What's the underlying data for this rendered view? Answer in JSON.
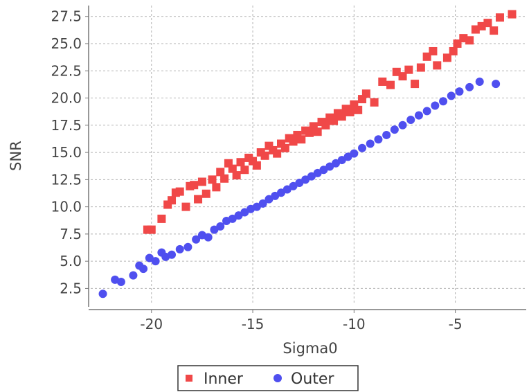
{
  "chart_data": {
    "type": "scatter",
    "title": "",
    "xlabel": "Sigma0",
    "ylabel": "SNR",
    "xlim": [
      -23,
      -1.5
    ],
    "ylim": [
      1,
      28.5
    ],
    "xticks": [
      -20,
      -15,
      -10,
      -5
    ],
    "xtick_labels": [
      "-20",
      "-15",
      "-10",
      "-5"
    ],
    "yticks": [
      2.5,
      5.0,
      7.5,
      10.0,
      12.5,
      15.0,
      17.5,
      20.0,
      22.5,
      25.0,
      27.5
    ],
    "ytick_labels": [
      "2.5",
      "5.0",
      "7.5",
      "10.0",
      "12.5",
      "15.0",
      "17.5",
      "20.0",
      "22.5",
      "25.0",
      "27.5"
    ],
    "grid": true,
    "legend_position": "bottom-center",
    "series": [
      {
        "name": "Inner",
        "marker": "square",
        "color": "#f04848",
        "points": [
          [
            -20.2,
            7.9
          ],
          [
            -20.0,
            7.9
          ],
          [
            -19.5,
            8.9
          ],
          [
            -19.2,
            10.2
          ],
          [
            -19.0,
            10.6
          ],
          [
            -18.8,
            11.3
          ],
          [
            -18.6,
            11.4
          ],
          [
            -18.3,
            10.0
          ],
          [
            -18.1,
            11.9
          ],
          [
            -17.9,
            12.0
          ],
          [
            -17.7,
            10.7
          ],
          [
            -17.5,
            12.3
          ],
          [
            -17.3,
            11.2
          ],
          [
            -17.0,
            12.5
          ],
          [
            -16.8,
            11.8
          ],
          [
            -16.6,
            13.2
          ],
          [
            -16.4,
            12.6
          ],
          [
            -16.2,
            14.0
          ],
          [
            -16.0,
            13.5
          ],
          [
            -15.8,
            12.9
          ],
          [
            -15.6,
            14.1
          ],
          [
            -15.4,
            13.4
          ],
          [
            -15.2,
            14.5
          ],
          [
            -15.0,
            14.2
          ],
          [
            -14.8,
            13.8
          ],
          [
            -14.6,
            15.0
          ],
          [
            -14.4,
            14.7
          ],
          [
            -14.2,
            15.6
          ],
          [
            -14.0,
            15.2
          ],
          [
            -13.8,
            14.9
          ],
          [
            -13.6,
            15.8
          ],
          [
            -13.4,
            15.4
          ],
          [
            -13.2,
            16.3
          ],
          [
            -13.0,
            16.0
          ],
          [
            -12.8,
            16.6
          ],
          [
            -12.6,
            16.2
          ],
          [
            -12.4,
            17.0
          ],
          [
            -12.2,
            16.8
          ],
          [
            -12.0,
            17.4
          ],
          [
            -11.8,
            16.9
          ],
          [
            -11.6,
            17.8
          ],
          [
            -11.4,
            17.5
          ],
          [
            -11.2,
            18.2
          ],
          [
            -11.0,
            17.9
          ],
          [
            -10.8,
            18.6
          ],
          [
            -10.6,
            18.3
          ],
          [
            -10.4,
            19.0
          ],
          [
            -10.2,
            18.7
          ],
          [
            -10.0,
            19.4
          ],
          [
            -9.8,
            18.9
          ],
          [
            -9.6,
            19.9
          ],
          [
            -9.4,
            20.4
          ],
          [
            -9.0,
            19.6
          ],
          [
            -8.6,
            21.5
          ],
          [
            -8.2,
            21.2
          ],
          [
            -7.9,
            22.4
          ],
          [
            -7.6,
            22.0
          ],
          [
            -7.3,
            22.6
          ],
          [
            -7.0,
            21.3
          ],
          [
            -6.7,
            22.8
          ],
          [
            -6.4,
            23.8
          ],
          [
            -6.1,
            24.3
          ],
          [
            -5.9,
            23.0
          ],
          [
            -5.4,
            23.7
          ],
          [
            -5.1,
            24.3
          ],
          [
            -4.9,
            25.0
          ],
          [
            -4.6,
            25.5
          ],
          [
            -4.3,
            25.3
          ],
          [
            -4.0,
            26.3
          ],
          [
            -3.7,
            26.6
          ],
          [
            -3.4,
            26.9
          ],
          [
            -3.1,
            26.2
          ],
          [
            -2.8,
            27.4
          ],
          [
            -2.2,
            27.7
          ]
        ]
      },
      {
        "name": "Outer",
        "marker": "circle",
        "color": "#4f4fef",
        "points": [
          [
            -22.4,
            2.0
          ],
          [
            -21.8,
            3.3
          ],
          [
            -21.5,
            3.1
          ],
          [
            -20.9,
            3.7
          ],
          [
            -20.6,
            4.6
          ],
          [
            -20.4,
            4.3
          ],
          [
            -20.1,
            5.3
          ],
          [
            -19.8,
            5.0
          ],
          [
            -19.5,
            5.8
          ],
          [
            -19.3,
            5.4
          ],
          [
            -19.0,
            5.6
          ],
          [
            -18.6,
            6.1
          ],
          [
            -18.2,
            6.3
          ],
          [
            -17.8,
            7.0
          ],
          [
            -17.5,
            7.4
          ],
          [
            -17.2,
            7.2
          ],
          [
            -16.9,
            7.9
          ],
          [
            -16.6,
            8.2
          ],
          [
            -16.3,
            8.7
          ],
          [
            -16.0,
            8.9
          ],
          [
            -15.7,
            9.2
          ],
          [
            -15.4,
            9.5
          ],
          [
            -15.1,
            9.8
          ],
          [
            -14.8,
            10.0
          ],
          [
            -14.5,
            10.3
          ],
          [
            -14.2,
            10.7
          ],
          [
            -13.9,
            11.0
          ],
          [
            -13.6,
            11.3
          ],
          [
            -13.3,
            11.6
          ],
          [
            -13.0,
            11.9
          ],
          [
            -12.7,
            12.2
          ],
          [
            -12.4,
            12.5
          ],
          [
            -12.1,
            12.8
          ],
          [
            -11.8,
            13.1
          ],
          [
            -11.5,
            13.4
          ],
          [
            -11.2,
            13.7
          ],
          [
            -10.9,
            14.0
          ],
          [
            -10.6,
            14.3
          ],
          [
            -10.3,
            14.6
          ],
          [
            -10.0,
            14.9
          ],
          [
            -9.6,
            15.4
          ],
          [
            -9.2,
            15.8
          ],
          [
            -8.8,
            16.2
          ],
          [
            -8.4,
            16.6
          ],
          [
            -8.0,
            17.1
          ],
          [
            -7.6,
            17.5
          ],
          [
            -7.2,
            18.0
          ],
          [
            -6.8,
            18.4
          ],
          [
            -6.4,
            18.8
          ],
          [
            -6.0,
            19.3
          ],
          [
            -5.6,
            19.7
          ],
          [
            -5.2,
            20.2
          ],
          [
            -4.8,
            20.6
          ],
          [
            -4.3,
            21.0
          ],
          [
            -3.8,
            21.5
          ],
          [
            -3.0,
            21.3
          ]
        ]
      }
    ]
  }
}
